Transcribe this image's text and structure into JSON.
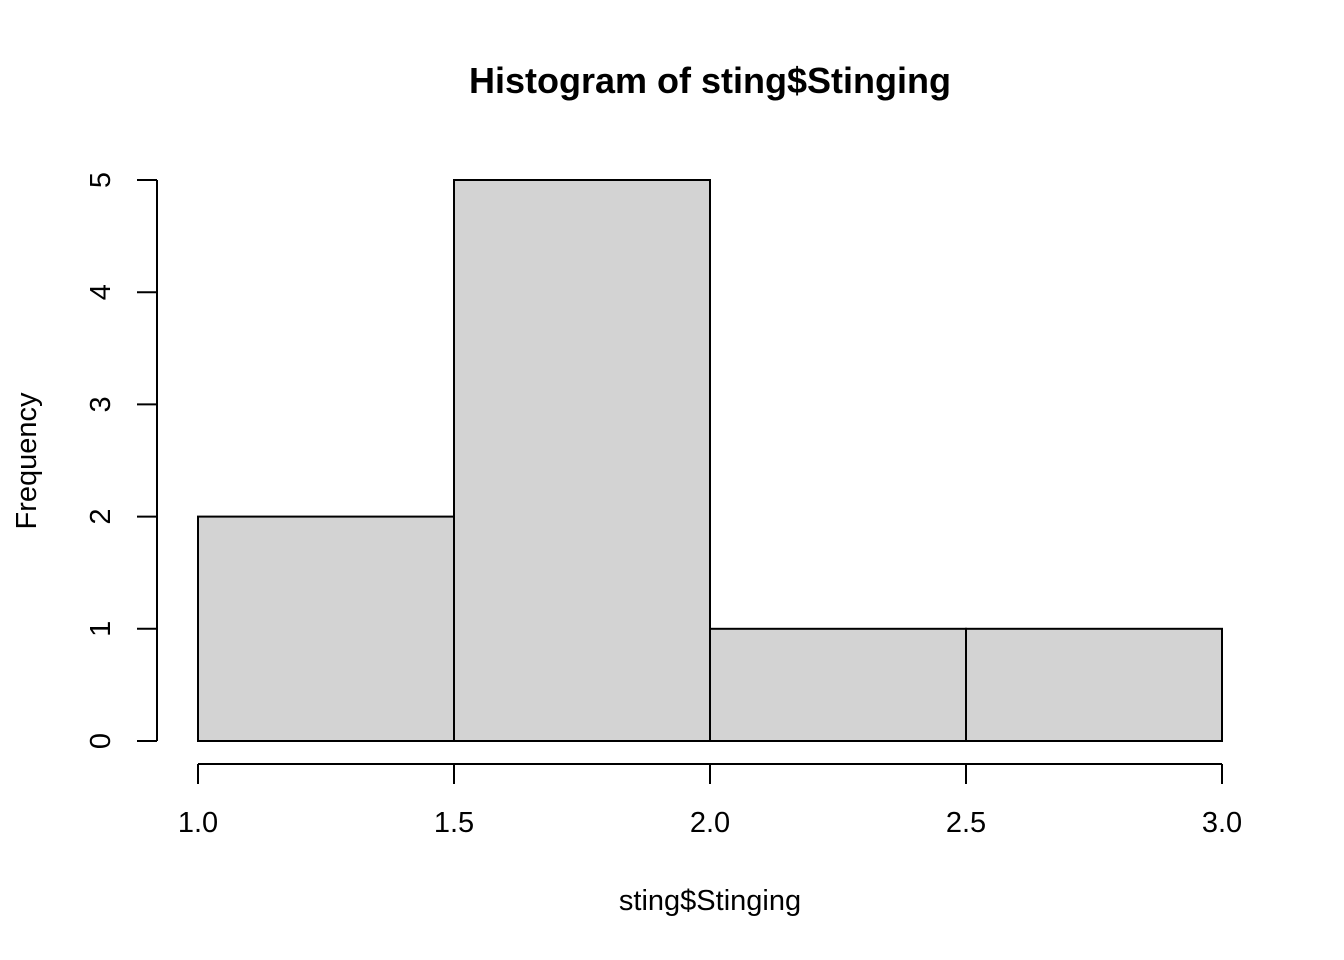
{
  "chart_data": {
    "type": "bar",
    "title": "Histogram of sting$Stinging",
    "xlabel": "sting$Stinging",
    "ylabel": "Frequency",
    "bins": [
      {
        "from": 1.0,
        "to": 1.5,
        "count": 2
      },
      {
        "from": 1.5,
        "to": 2.0,
        "count": 5
      },
      {
        "from": 2.0,
        "to": 2.5,
        "count": 1
      },
      {
        "from": 2.5,
        "to": 3.0,
        "count": 1
      }
    ],
    "x_ticks": [
      "1.0",
      "1.5",
      "2.0",
      "2.5",
      "3.0"
    ],
    "y_ticks": [
      "0",
      "1",
      "2",
      "3",
      "4",
      "5"
    ],
    "xlim": [
      1.0,
      3.0
    ],
    "ylim": [
      0,
      5
    ],
    "grid": false,
    "colors": {
      "bar_fill": "#d3d3d3",
      "bar_stroke": "#000000"
    }
  }
}
